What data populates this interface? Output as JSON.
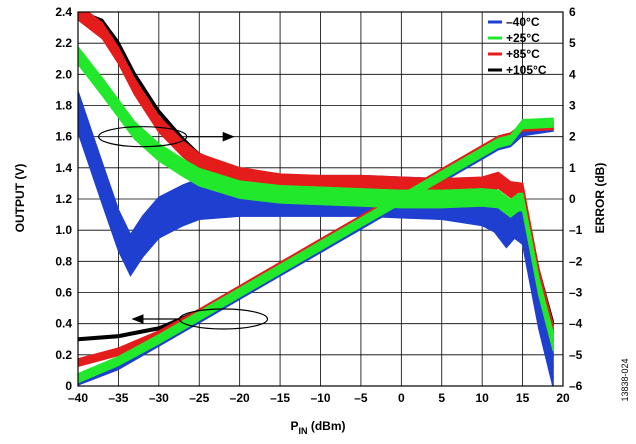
{
  "figure_id": "13838-024",
  "chart_data": {
    "type": "line",
    "xlabel_main": "P",
    "xlabel_sub": "IN",
    "xlabel_rest": " (dBm)",
    "ylabel_left": "OUTPUT (V)",
    "ylabel_right": "ERROR (dB)",
    "xlim": [
      -40,
      20
    ],
    "ylim_left": [
      0,
      2.4
    ],
    "ylim_right": [
      -6,
      6
    ],
    "x_ticks": [
      -40,
      -35,
      -30,
      -25,
      -20,
      -15,
      -10,
      -5,
      0,
      5,
      10,
      15,
      20
    ],
    "x_tick_labels": [
      "–40",
      "–35",
      "–30",
      "–25",
      "–20",
      "–15",
      "–10",
      "–5",
      "0",
      "5",
      "10",
      "15",
      "20"
    ],
    "y_left_ticks": [
      0,
      0.2,
      0.4,
      0.6,
      0.8,
      1.0,
      1.2,
      1.4,
      1.6,
      1.8,
      2.0,
      2.2,
      2.4
    ],
    "y_left_tick_labels": [
      "0",
      "0.2",
      "0.4",
      "0.6",
      "0.8",
      "1.0",
      "1.2",
      "1.4",
      "1.6",
      "1.8",
      "2.0",
      "2.2",
      "2.4"
    ],
    "y_right_ticks": [
      -6,
      -5,
      -4,
      -3,
      -2,
      -1,
      0,
      1,
      2,
      3,
      4,
      5,
      6
    ],
    "y_right_tick_labels": [
      "–6",
      "–5",
      "–4",
      "–3",
      "–2",
      "–1",
      "0",
      "1",
      "2",
      "3",
      "4",
      "5",
      "6"
    ],
    "grid": true,
    "legend_position": "top-right",
    "series": [
      {
        "name": "–40°C",
        "color": "#1f3fd0",
        "output": {
          "x": [
            -40,
            -35,
            -30,
            -25,
            -20,
            -15,
            -10,
            -5,
            0,
            5,
            10,
            12,
            13.5,
            15,
            18.8
          ],
          "y": [
            0.02,
            0.12,
            0.27,
            0.42,
            0.57,
            0.72,
            0.87,
            1.02,
            1.17,
            1.32,
            1.47,
            1.53,
            1.55,
            1.62,
            1.65
          ],
          "y_spread": 0.03
        },
        "error": {
          "x": [
            -40,
            -37,
            -35,
            -33.5,
            -32,
            -30,
            -27,
            -25,
            -20,
            -15,
            -10,
            -5,
            0,
            5,
            10,
            11.5,
            13,
            14,
            15,
            17,
            18.8
          ],
          "y": [
            2.8,
            0.5,
            -1.0,
            -1.8,
            -1.2,
            -0.6,
            -0.2,
            0.0,
            0.1,
            0.1,
            0.1,
            0.1,
            0.05,
            0.0,
            -0.2,
            -0.4,
            -0.9,
            -0.6,
            -0.8,
            -3.5,
            -5.4
          ],
          "y_spread": 1.3
        }
      },
      {
        "name": "+25°C",
        "color": "#22e82c",
        "output": {
          "x": [
            -40,
            -35,
            -30,
            -25,
            -20,
            -15,
            -10,
            -5,
            0,
            5,
            10,
            12,
            13.5,
            15,
            18.8
          ],
          "y": [
            0.05,
            0.16,
            0.3,
            0.45,
            0.6,
            0.75,
            0.9,
            1.05,
            1.2,
            1.35,
            1.5,
            1.56,
            1.58,
            1.68,
            1.69
          ],
          "y_spread": 0.06
        },
        "error": {
          "x": [
            -40,
            -37,
            -35,
            -33,
            -30,
            -27,
            -25,
            -20,
            -15,
            -10,
            -5,
            0,
            5,
            10,
            12,
            13.5,
            14.5,
            15,
            17,
            18.8
          ],
          "y": [
            4.6,
            3.6,
            2.9,
            2.2,
            1.5,
            1.0,
            0.7,
            0.3,
            0.15,
            0.1,
            0.05,
            0.0,
            0.0,
            0.05,
            0.0,
            -0.3,
            -0.1,
            -0.1,
            -2.8,
            -4.6
          ],
          "y_spread": 0.55
        }
      },
      {
        "name": "+85°C",
        "color": "#e51c1c",
        "output": {
          "x": [
            -40,
            -35,
            -30,
            -25,
            -20,
            -15,
            -10,
            -5,
            0,
            5,
            10,
            12,
            13.5,
            15,
            18.8
          ],
          "y": [
            0.15,
            0.22,
            0.33,
            0.47,
            0.62,
            0.77,
            0.92,
            1.07,
            1.22,
            1.37,
            1.52,
            1.58,
            1.6,
            1.66,
            1.67
          ],
          "y_spread": 0.05
        },
        "error": {
          "x": [
            -40,
            -37,
            -35,
            -33,
            -30,
            -27,
            -25,
            -20,
            -15,
            -10,
            -5,
            0,
            5,
            10,
            12,
            13.5,
            15,
            17,
            18.8
          ],
          "y": [
            6.0,
            5.4,
            4.6,
            3.6,
            2.4,
            1.6,
            1.2,
            0.75,
            0.55,
            0.5,
            0.5,
            0.45,
            0.4,
            0.45,
            0.6,
            0.3,
            0.25,
            -2.5,
            -4.3
          ],
          "y_spread": 0.5
        }
      },
      {
        "name": "+105°C",
        "color": "#000000",
        "output": {
          "x": [
            -40,
            -35,
            -30,
            -25,
            -20,
            -15,
            -10,
            -5,
            0,
            5,
            10,
            12,
            13.5,
            15,
            18.8
          ],
          "y": [
            0.3,
            0.32,
            0.37,
            0.48,
            0.63,
            0.78,
            0.93,
            1.08,
            1.23,
            1.38,
            1.53,
            1.59,
            1.61,
            1.67,
            1.68
          ],
          "y_spread": 0.02
        },
        "error": {
          "x": [
            -40,
            -37,
            -35,
            -33,
            -30,
            -27,
            -25,
            -20,
            -15,
            -10,
            -5,
            0,
            5,
            10,
            12,
            13.5,
            15,
            17,
            18.8
          ],
          "y": [
            6.0,
            5.7,
            5.0,
            4.0,
            2.8,
            1.9,
            1.4,
            0.85,
            0.65,
            0.6,
            0.55,
            0.5,
            0.5,
            0.55,
            0.7,
            0.35,
            0.3,
            -2.3,
            -4.0
          ],
          "y_spread": 0.12
        }
      }
    ],
    "annotations": [
      {
        "type": "ellipse-arrow",
        "target_axis": "right",
        "x": -32,
        "y_left": 1.6,
        "arrow_to_x": -22
      },
      {
        "type": "ellipse-arrow",
        "target_axis": "left",
        "x": -22,
        "y_left": 0.43,
        "arrow_to_x": -32
      }
    ]
  }
}
